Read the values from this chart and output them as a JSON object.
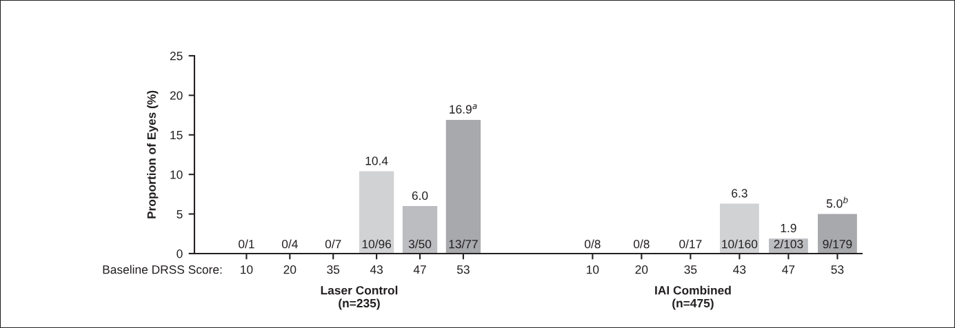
{
  "chart_data": [
    {
      "type": "bar",
      "ylabel": "Proportion of Eyes (%)",
      "xlabel": "Laser Control\n(n=235)",
      "categories": [
        "10",
        "20",
        "35",
        "43",
        "47",
        "53"
      ],
      "values": [
        0,
        0,
        0,
        10.4,
        6.0,
        16.9
      ],
      "colors": [
        "#d1d2d4",
        "#d1d2d4",
        "#d1d2d4",
        "#d1d2d4",
        "#bcbdc0",
        "#a7a9ac"
      ],
      "value_labels": [
        null,
        null,
        null,
        "10.4",
        "6.0",
        "16.9$^{a}$"
      ],
      "annotations": [
        "Baseline DRSS Score:",
        {
          "text": "0/1",
          "x": "10",
          "y": 0
        },
        {
          "text": "0/4",
          "x": "20",
          "y": 0
        },
        {
          "text": "0/7",
          "x": "35",
          "y": 0
        },
        {
          "text": "10/96",
          "x": "43",
          "y": 0
        },
        {
          "text": "3/50",
          "x": "47",
          "y": 0
        },
        {
          "text": "13/77",
          "x": "53",
          "y": 0
        }
      ],
      "ylim": [
        0,
        25
      ],
      "yticks": [
        0,
        5,
        10,
        15,
        20,
        25
      ],
      "grid": false,
      "legend": false
    },
    {
      "type": "bar",
      "xlabel": "IAI Combined\n(n=475)",
      "categories": [
        "10",
        "20",
        "35",
        "43",
        "47",
        "53"
      ],
      "values": [
        0,
        0,
        0,
        6.3,
        1.9,
        5.0
      ],
      "colors": [
        "#d1d2d4",
        "#d1d2d4",
        "#d1d2d4",
        "#d1d2d4",
        "#bcbdc0",
        "#a7a9ac"
      ],
      "value_labels": [
        null,
        null,
        null,
        "6.3",
        "1.9",
        "5.0$^{b}$"
      ],
      "annotations": [
        {
          "text": "0/8",
          "x": "10",
          "y": 0
        },
        {
          "text": "0/8",
          "x": "20",
          "y": 0
        },
        {
          "text": "0/17",
          "x": "35",
          "y": 0
        },
        {
          "text": "10/160",
          "x": "43",
          "y": 0
        },
        {
          "text": "2/103",
          "x": "47",
          "y": 0
        },
        {
          "text": "9/179",
          "x": "53",
          "y": 0
        }
      ],
      "ylim": [
        0,
        25
      ],
      "yticks": [
        0,
        5,
        10,
        15,
        20,
        25
      ],
      "tick_labels": "x",
      "grid": false,
      "legend": false
    }
  ]
}
